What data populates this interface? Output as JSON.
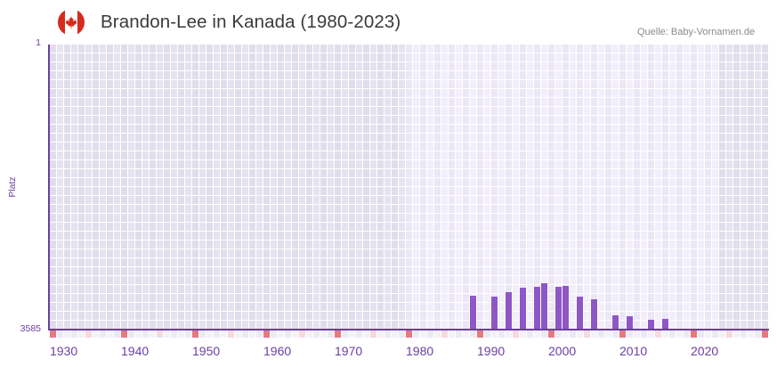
{
  "header": {
    "title": "Brandon-Lee in Kanada (1980-2023)",
    "source": "Quelle: Baby-Vornamen.de",
    "flag_icon": "canada-flag-icon"
  },
  "colors": {
    "bar": "#8e57c8",
    "axis": "#6b3fa0",
    "decade_marker": "#e57880",
    "half_decade_marker": "#f5d9e3",
    "marker_light_a": "#f3f1fb",
    "marker_light_b": "#ece9f7",
    "flag_red": "#d52b1e"
  },
  "chart_data": {
    "type": "bar",
    "title": "Brandon-Lee in Kanada (1980-2023)",
    "xlabel": "",
    "ylabel": "Platz",
    "y_tick_labels": [
      "1",
      "3585"
    ],
    "ylim": [
      3585,
      1
    ],
    "y_inverted": true,
    "xlim": [
      1930,
      2030
    ],
    "x_tick_labels": [
      "1930",
      "1940",
      "1950",
      "1960",
      "1970",
      "1980",
      "1990",
      "2000",
      "2010",
      "2020"
    ],
    "data_range": [
      1980,
      2023
    ],
    "grid": true,
    "legend": null,
    "categories": [
      1989,
      1992,
      1994,
      1996,
      1998,
      1999,
      2001,
      2002,
      2004,
      2006,
      2009,
      2011,
      2014,
      2016
    ],
    "values": [
      3159,
      3171,
      3115,
      3059,
      3047,
      3003,
      3047,
      3036,
      3171,
      3204,
      3406,
      3417,
      3462,
      3451
    ]
  }
}
